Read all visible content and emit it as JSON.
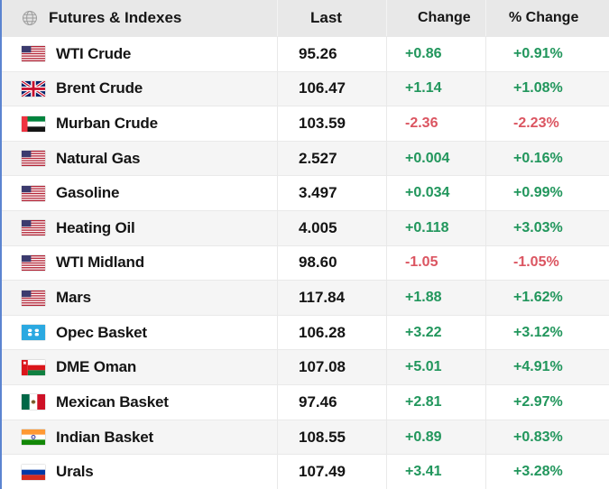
{
  "header": {
    "col_asset": "Futures & Indexes",
    "col_last": "Last",
    "col_change": "Change",
    "col_pct": "% Change"
  },
  "colors": {
    "up": "#21965c",
    "down": "#db5561",
    "accent_left_border": "#5b84d0",
    "header_bg": "#e8e8e8",
    "alt_row_bg": "#f5f5f5"
  },
  "icons": {
    "globe": "globe-icon"
  },
  "rows": [
    {
      "name": "WTI Crude",
      "flag": "us",
      "last": "95.26",
      "change": "+0.86",
      "pct": "+0.91%",
      "dir": "up"
    },
    {
      "name": "Brent Crude",
      "flag": "uk",
      "last": "106.47",
      "change": "+1.14",
      "pct": "+1.08%",
      "dir": "up"
    },
    {
      "name": "Murban Crude",
      "flag": "ae",
      "last": "103.59",
      "change": "-2.36",
      "pct": "-2.23%",
      "dir": "down"
    },
    {
      "name": "Natural Gas",
      "flag": "us",
      "last": "2.527",
      "change": "+0.004",
      "pct": "+0.16%",
      "dir": "up"
    },
    {
      "name": "Gasoline",
      "flag": "us",
      "last": "3.497",
      "change": "+0.034",
      "pct": "+0.99%",
      "dir": "up"
    },
    {
      "name": "Heating Oil",
      "flag": "us",
      "last": "4.005",
      "change": "+0.118",
      "pct": "+3.03%",
      "dir": "up"
    },
    {
      "name": "WTI Midland",
      "flag": "us",
      "last": "98.60",
      "change": "-1.05",
      "pct": "-1.05%",
      "dir": "down"
    },
    {
      "name": "Mars",
      "flag": "us",
      "last": "117.84",
      "change": "+1.88",
      "pct": "+1.62%",
      "dir": "up"
    },
    {
      "name": "Opec Basket",
      "flag": "opec",
      "last": "106.28",
      "change": "+3.22",
      "pct": "+3.12%",
      "dir": "up"
    },
    {
      "name": "DME Oman",
      "flag": "om",
      "last": "107.08",
      "change": "+5.01",
      "pct": "+4.91%",
      "dir": "up"
    },
    {
      "name": "Mexican Basket",
      "flag": "mx",
      "last": "97.46",
      "change": "+2.81",
      "pct": "+2.97%",
      "dir": "up"
    },
    {
      "name": "Indian Basket",
      "flag": "in",
      "last": "108.55",
      "change": "+0.89",
      "pct": "+0.83%",
      "dir": "up"
    },
    {
      "name": "Urals",
      "flag": "ru",
      "last": "107.49",
      "change": "+3.41",
      "pct": "+3.28%",
      "dir": "up"
    }
  ]
}
